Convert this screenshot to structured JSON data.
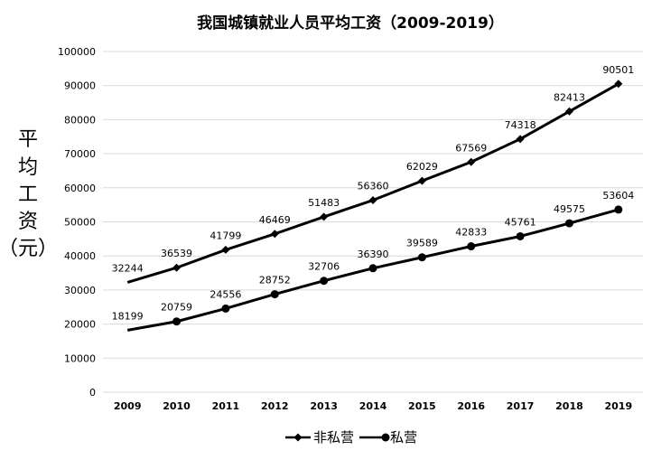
{
  "chart_data": {
    "type": "line",
    "title": "我国城镇就业人员平均工资（2009-2019）",
    "ylabel": [
      "平",
      "均",
      "工",
      "资",
      "（元）"
    ],
    "xlabel": "",
    "categories": [
      "2009",
      "2010",
      "2011",
      "2012",
      "2013",
      "2014",
      "2015",
      "2016",
      "2017",
      "2018",
      "2019"
    ],
    "ylim": [
      0,
      100000
    ],
    "yticks": [
      "0",
      "10000",
      "20000",
      "30000",
      "40000",
      "50000",
      "60000",
      "70000",
      "80000",
      "90000",
      "100000"
    ],
    "grid": true,
    "legend_position": "bottom-center",
    "series": [
      {
        "name": "非私营",
        "marker": "diamond",
        "color": "#000000",
        "values": [
          32244,
          36539,
          41799,
          46469,
          51483,
          56360,
          62029,
          67569,
          74318,
          82413,
          90501
        ]
      },
      {
        "name": "私营",
        "marker": "circle",
        "color": "#000000",
        "values": [
          18199,
          20759,
          24556,
          28752,
          32706,
          36390,
          39589,
          42833,
          45761,
          49575,
          53604
        ]
      }
    ]
  }
}
